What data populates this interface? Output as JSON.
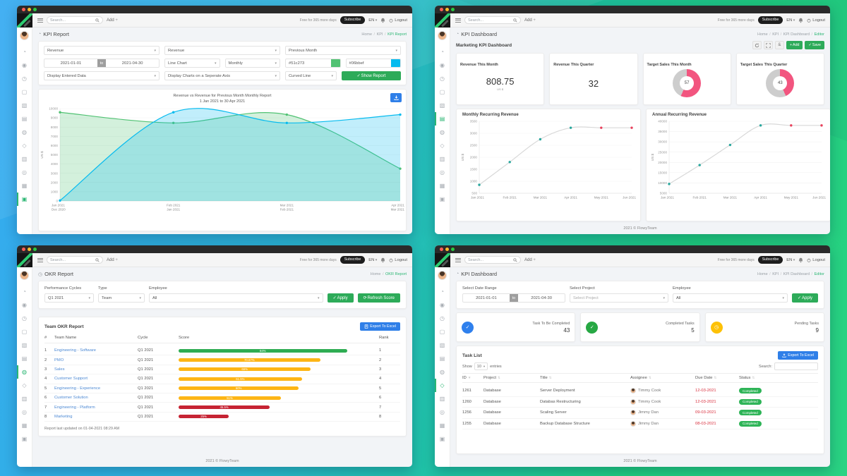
{
  "topbar": {
    "search_placeholder": "Search...",
    "add_label": "Add",
    "trial": "Free for 365 more days",
    "subscribe": "Subscribe",
    "lang": "EN",
    "logout": "Logout"
  },
  "footer": "2021 © FlowyTeam",
  "sidebar": {
    "icons": [
      "dashboard",
      "people",
      "clock",
      "door",
      "hourglass",
      "tasks",
      "cloud",
      "target",
      "notes",
      "focus",
      "calendar",
      "wallet"
    ]
  },
  "colors": {
    "accent_green": "#2dab59",
    "export_blue": "#2f7fe8",
    "donut_pink": "#f2557f",
    "donut_gray": "#cdcdcd",
    "bar_green": "#2eac52",
    "bar_yellow": "#fdb515",
    "bar_red": "#c62333",
    "marker_teal": "#2aa79d",
    "marker_red": "#e8415c",
    "link_blue": "#4e8ad4"
  },
  "windows": {
    "tl": {
      "title": "KPI Report",
      "breadcrumb": [
        "Home",
        "KPI",
        "KPI Report"
      ],
      "sidebar_active": 11,
      "form": {
        "kpi1": "Revenue",
        "kpi2": "Revenue",
        "compare": "Previous Month",
        "date_from": "2021-01-01",
        "to_label": "to",
        "date_to": "2021-04-30",
        "chart_type": "Line Chart",
        "interval": "Monthly",
        "color1": {
          "label": "#51c273",
          "hex": "#51c273"
        },
        "color2": {
          "label": "#06bbef",
          "hex": "#06bbef"
        },
        "display_data": "Display Entered Data",
        "axis_mode": "Display Charts on a Seperate Axis",
        "line_style": "Curved Line",
        "show_report": "Show Report"
      },
      "chart": {
        "title_line1": "Revenue vs Revenue for Previous Month Monthly Report",
        "title_line2": "1 Jan 2021 to 30 Apr 2021",
        "ylabel": "US $",
        "ymin": 0,
        "ymax": 10000,
        "ystep": 1000,
        "x": [
          [
            "Jan 2021",
            "Dec 2020"
          ],
          [
            "Feb 2021",
            "Jan 2021"
          ],
          [
            "Mar 2021",
            "Feb 2021"
          ],
          [
            "Apr 2021",
            "Mar 2021"
          ]
        ],
        "series": [
          {
            "name": "Revenue",
            "color": "#51c273",
            "values": [
              9600,
              8450,
              9350,
              3500
            ]
          },
          {
            "name": "Revenue for Previous Month",
            "color": "#06bbef",
            "values": [
              50,
              9600,
              8450,
              9350
            ]
          }
        ]
      }
    },
    "tr": {
      "title": "KPI Dashboard",
      "breadcrumb": [
        "Home",
        "KPI",
        "KPI Dashboard",
        "Editor"
      ],
      "sidebar_active": 5,
      "subtitle": "Marketing KPI Dashboard",
      "actions": {
        "add": "Add",
        "save": "Save"
      },
      "stat_cards": [
        {
          "label": "Revenue This Month",
          "value": "808.75",
          "unit": "US $"
        },
        {
          "label": "Revenue This Quarter",
          "value": "32"
        },
        {
          "label": "Target Sales This Month",
          "donut": 57
        },
        {
          "label": "Target Sales This Quarter",
          "donut": 43
        }
      ],
      "charts": [
        {
          "title": "Monthly Recurring Revenue",
          "ylabel": "US $",
          "ymin": 500,
          "ymax": 3500,
          "ystep": 500,
          "x": [
            "Jan 2021",
            "Feb 2021",
            "Mar 2021",
            "Apr 2021",
            "May 2021",
            "Jun 2021"
          ],
          "values": [
            850,
            1800,
            2750,
            3230,
            3230,
            3230
          ],
          "marker_colors": [
            "#2aa79d",
            "#2aa79d",
            "#2aa79d",
            "#2aa79d",
            "#e8415c",
            "#e8415c"
          ],
          "line_color": "#d8d8d8"
        },
        {
          "title": "Annual Recurring Revenue",
          "ylabel": "US $",
          "ymin": 5000,
          "ymax": 40000,
          "ystep": 5000,
          "x": [
            "Jan 2021",
            "Feb 2021",
            "Mar 2021",
            "Apr 2021",
            "May 2021",
            "Jun 2021"
          ],
          "values": [
            9500,
            18700,
            28500,
            38000,
            38000,
            38000
          ],
          "marker_colors": [
            "#2aa79d",
            "#2aa79d",
            "#2aa79d",
            "#2aa79d",
            "#e8415c",
            "#e8415c"
          ],
          "line_color": "#d8d8d8"
        }
      ]
    },
    "bl": {
      "title": "OKR Report",
      "breadcrumb": [
        "Home",
        "OKR Report"
      ],
      "sidebar_active": 6,
      "filters": {
        "labels": [
          "Performance Cycles",
          "Type",
          "Employee"
        ],
        "cycle": "Q1 2021",
        "type": "Team",
        "employee": "All",
        "apply": "Apply",
        "refresh": "Refresh Score"
      },
      "table": {
        "card_title": "Team OKR Report",
        "export": "Export To Excel",
        "headers": [
          "#",
          "Team Name",
          "Cycle",
          "Score",
          "Rank"
        ],
        "rows": [
          {
            "num": "1",
            "team": "Engineering - Software",
            "cycle": "Q1 2021",
            "score": 84,
            "score_label": "84%",
            "color": "#2eac52",
            "rank": "1"
          },
          {
            "num": "2",
            "team": "PMO",
            "cycle": "Q1 2021",
            "score": 70.67,
            "score_label": "70.67%",
            "color": "#fdb515",
            "rank": "2"
          },
          {
            "num": "3",
            "team": "Sales",
            "cycle": "Q1 2021",
            "score": 66,
            "score_label": "66%",
            "color": "#fdb515",
            "rank": "3"
          },
          {
            "num": "4",
            "team": "Customer Support",
            "cycle": "Q1 2021",
            "score": 61.5,
            "score_label": "61.5%",
            "color": "#fdb515",
            "rank": "4"
          },
          {
            "num": "5",
            "team": "Engineering - Experience",
            "cycle": "Q1 2021",
            "score": 60,
            "score_label": "60%",
            "color": "#fdb515",
            "rank": "5"
          },
          {
            "num": "6",
            "team": "Customer Solution",
            "cycle": "Q1 2021",
            "score": 51,
            "score_label": "51%",
            "color": "#fdb515",
            "rank": "6"
          },
          {
            "num": "7",
            "team": "Engineering - Platform",
            "cycle": "Q1 2021",
            "score": 45.5,
            "score_label": "45.5%",
            "color": "#c62333",
            "rank": "7"
          },
          {
            "num": "8",
            "team": "Marketing",
            "cycle": "Q1 2021",
            "score": 25,
            "score_label": "25%",
            "color": "#c62333",
            "rank": "8"
          }
        ],
        "updated": "Report last updated on 01-04-2021 08:29 AM"
      }
    },
    "br": {
      "title": "KPI Dashboard",
      "breadcrumb": [
        "Home",
        "KPI",
        "KPI Dashboard",
        "Editor"
      ],
      "sidebar_active": 7,
      "filters": {
        "labels": [
          "Select Date Range",
          "Select Project",
          "Employee"
        ],
        "date_from": "2021-01-01",
        "to_label": "to",
        "date_to": "2021-04-30",
        "project_placeholder": "Select Project",
        "employee": "All",
        "apply": "Apply"
      },
      "stats": [
        {
          "label": "Task To Be Completed",
          "value": "43",
          "color": "#2f80ed",
          "glyph": "✓"
        },
        {
          "label": "Completed Tasks",
          "value": "5",
          "color": "#27a844",
          "glyph": "✓"
        },
        {
          "label": "Pending Tasks",
          "value": "9",
          "color": "#fdc107",
          "glyph": "◷"
        }
      ],
      "tasklist": {
        "title": "Task List",
        "export": "Export To Excel",
        "show_label": "Show",
        "page_size": "10",
        "entries_label": "entries",
        "search_label": "Search:",
        "headers": [
          "ID",
          "Project",
          "Title",
          "Assignee",
          "Due Date",
          "Status"
        ],
        "rows": [
          {
            "id": "1261",
            "project": "Database",
            "title": "Server Deployment",
            "assignee": "Timmy Cook",
            "due": "12-03-2021",
            "status": "Completed"
          },
          {
            "id": "1260",
            "project": "Database",
            "title": "Databas Restructuring",
            "assignee": "Timmy Cook",
            "due": "12-03-2021",
            "status": "Completed"
          },
          {
            "id": "1256",
            "project": "Database",
            "title": "Scaling Server",
            "assignee": "Jimmy Dan",
            "due": "09-03-2021",
            "status": "Completed"
          },
          {
            "id": "1255",
            "project": "Database",
            "title": "Backup Database Structure",
            "assignee": "Jimmy Dan",
            "due": "08-03-2021",
            "status": "Completed"
          }
        ]
      }
    }
  }
}
